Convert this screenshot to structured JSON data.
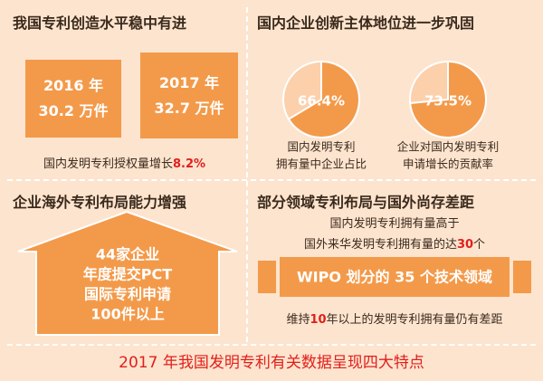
{
  "panels": [
    {
      "title": "我国专利创造水平稳中有进",
      "boxes": [
        [
          "2016 年",
          "30.2 万件"
        ],
        [
          "2017 年",
          "32.7 万件"
        ]
      ],
      "caption": [
        "国内发明专利授权量增长",
        "8.2%"
      ]
    },
    {
      "title": "国内企业创新主体地位进一步巩固",
      "pies": [
        {
          "value": 66.4,
          "label": "66.4%",
          "caption": [
            "国内发明专利",
            "拥有量中企业占比"
          ]
        },
        {
          "value": 73.5,
          "label": "73.5%",
          "caption": [
            "企业对国内发明专利",
            "申请增长的贡献率"
          ]
        }
      ]
    },
    {
      "title": "企业海外专利布局能力增强",
      "house": [
        "44家企业",
        "年度提交PCT",
        "国际专利申请",
        "100件以上"
      ]
    },
    {
      "title": "部分领域专利布局与国外尚存差距",
      "line1": "国内发明专利拥有量高于",
      "line2": [
        "国外来华发明专利拥有量的达",
        "30",
        "个"
      ],
      "banner": "WIPO 划分的 35 个技术领域",
      "line3": [
        "维持",
        "10",
        "年以上的发明专利拥有量仍有差距"
      ]
    }
  ],
  "footer": "2017 年我国发明专利有关数据呈现四大特点"
}
